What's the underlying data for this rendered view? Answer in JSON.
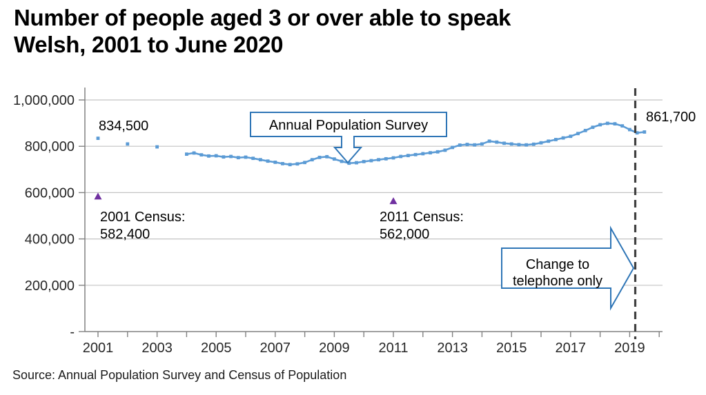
{
  "title": {
    "line1": "Number of people aged 3 or over able to speak",
    "line2": "Welsh, 2001 to June 2020"
  },
  "source": "Source: Annual Population Survey and Census of Population",
  "colors": {
    "aps_line": "#5b9bd5",
    "census_marker": "#7030a0",
    "callout_border": "#2e75b6",
    "callout_fill": "#ffffff",
    "dashed_line": "#404040",
    "gridline": "#c3c3c3",
    "axis": "#808080",
    "text": "#262626"
  },
  "annotations": {
    "first_value_label": "834,500",
    "last_value_label": "861,700",
    "census_2001": {
      "line1": "2001 Census:",
      "line2": "582,400"
    },
    "census_2011": {
      "line1": "2011 Census:",
      "line2": "562,000"
    },
    "aps_callout": "Annual Population Survey",
    "telephone_arrow": {
      "line1": "Change to",
      "line2": "telephone only"
    }
  },
  "chart_data": {
    "type": "line",
    "title": "Number of people aged 3 or over able to speak Welsh, 2001 to June 2020",
    "xlabel": "",
    "ylabel": "",
    "grid": "horizontal",
    "legend": "none",
    "x_axis": {
      "tick_labels": [
        "2001",
        "2003",
        "2005",
        "2007",
        "2009",
        "2011",
        "2013",
        "2015",
        "2017",
        "2019"
      ],
      "tick_years": [
        2001,
        2003,
        2005,
        2007,
        2009,
        2011,
        2013,
        2015,
        2017,
        2019
      ],
      "minor_tick_step_years": 1,
      "range": [
        2000.55,
        2020.15
      ]
    },
    "y_axis": {
      "tick_labels": [
        "-",
        "200,000",
        "400,000",
        "600,000",
        "800,000",
        "1,000,000"
      ],
      "tick_values": [
        0,
        200000,
        400000,
        600000,
        800000,
        1000000
      ],
      "range": [
        0,
        1000000
      ]
    },
    "telephone_cutoff_x": 2019.23,
    "series": [
      {
        "name": "Annual Population Survey (annual points 2001-2003)",
        "draw": "markers",
        "marker": "square",
        "color": "#5b9bd5",
        "points": [
          [
            2001,
            834500
          ],
          [
            2002,
            810000
          ],
          [
            2003,
            797500
          ]
        ]
      },
      {
        "name": "Annual Population Survey (rolling quarterly estimates)",
        "draw": "line+markers",
        "marker": "square",
        "color": "#5b9bd5",
        "points": [
          [
            2004.0,
            766000
          ],
          [
            2004.25,
            771000
          ],
          [
            2004.5,
            763000
          ],
          [
            2004.75,
            758000
          ],
          [
            2005.0,
            759000
          ],
          [
            2005.25,
            754000
          ],
          [
            2005.5,
            756000
          ],
          [
            2005.75,
            751000
          ],
          [
            2006.0,
            753000
          ],
          [
            2006.25,
            748000
          ],
          [
            2006.5,
            742000
          ],
          [
            2006.75,
            736000
          ],
          [
            2007.0,
            731000
          ],
          [
            2007.25,
            725000
          ],
          [
            2007.5,
            721000
          ],
          [
            2007.75,
            724000
          ],
          [
            2008.0,
            730000
          ],
          [
            2008.25,
            742000
          ],
          [
            2008.5,
            752000
          ],
          [
            2008.75,
            755000
          ],
          [
            2009.0,
            745000
          ],
          [
            2009.25,
            735000
          ],
          [
            2009.5,
            727000
          ],
          [
            2009.75,
            729000
          ],
          [
            2010.0,
            734000
          ],
          [
            2010.25,
            738000
          ],
          [
            2010.5,
            742000
          ],
          [
            2010.75,
            746000
          ],
          [
            2011.0,
            750000
          ],
          [
            2011.25,
            756000
          ],
          [
            2011.5,
            760000
          ],
          [
            2011.75,
            764000
          ],
          [
            2012.0,
            768000
          ],
          [
            2012.25,
            772000
          ],
          [
            2012.5,
            776000
          ],
          [
            2012.75,
            783000
          ],
          [
            2013.0,
            795000
          ],
          [
            2013.25,
            805000
          ],
          [
            2013.5,
            808000
          ],
          [
            2013.75,
            806000
          ],
          [
            2014.0,
            810000
          ],
          [
            2014.25,
            822000
          ],
          [
            2014.5,
            818000
          ],
          [
            2014.75,
            813000
          ],
          [
            2015.0,
            810000
          ],
          [
            2015.25,
            807000
          ],
          [
            2015.5,
            806000
          ],
          [
            2015.75,
            809000
          ],
          [
            2016.0,
            815000
          ],
          [
            2016.25,
            822000
          ],
          [
            2016.5,
            829000
          ],
          [
            2016.75,
            836000
          ],
          [
            2017.0,
            843000
          ],
          [
            2017.25,
            855000
          ],
          [
            2017.5,
            868000
          ],
          [
            2017.75,
            882000
          ],
          [
            2018.0,
            893000
          ],
          [
            2018.25,
            899000
          ],
          [
            2018.5,
            897000
          ],
          [
            2018.75,
            888000
          ],
          [
            2019.0,
            872000
          ],
          [
            2019.25,
            858000
          ],
          [
            2019.5,
            861700
          ]
        ]
      },
      {
        "name": "Census of Population",
        "draw": "markers",
        "marker": "triangle",
        "color": "#7030a0",
        "points": [
          [
            2001,
            582400
          ],
          [
            2011,
            562000
          ]
        ]
      }
    ]
  }
}
